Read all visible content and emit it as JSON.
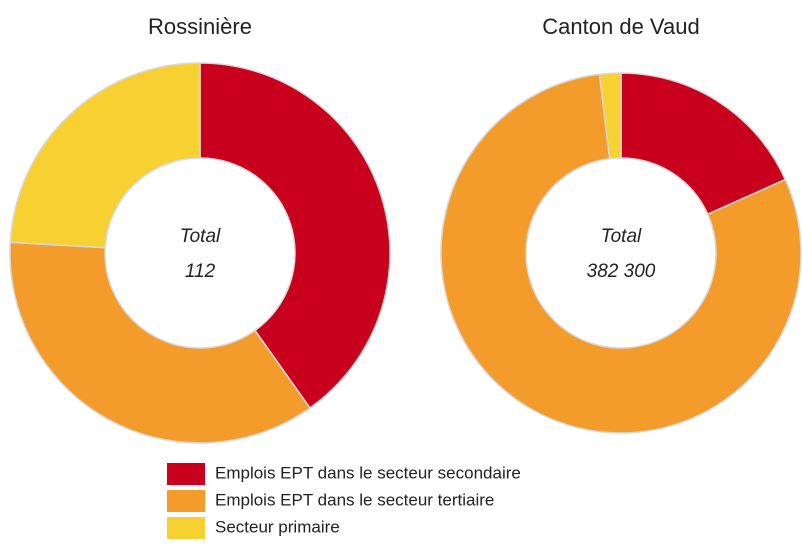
{
  "chart_data": [
    {
      "type": "pie",
      "title": "Rossinière",
      "center_label": "Total",
      "center_value": "112",
      "categories": [
        "Emplois EPT dans le secteur secondaire",
        "Emplois EPT dans le secteur tertiaire",
        "Secteur primaire"
      ],
      "values": [
        45,
        40,
        27
      ],
      "colors": [
        "#c8001e",
        "#f39c2c",
        "#f7d031"
      ]
    },
    {
      "type": "pie",
      "title": "Canton de Vaud",
      "center_label": "Total",
      "center_value": "382 300",
      "categories": [
        "Emplois EPT dans le secteur secondaire",
        "Emplois EPT dans le secteur tertiaire",
        "Secteur primaire"
      ],
      "values": [
        70000,
        305000,
        7300
      ],
      "colors": [
        "#c8001e",
        "#f39c2c",
        "#f7d031"
      ]
    }
  ]
}
